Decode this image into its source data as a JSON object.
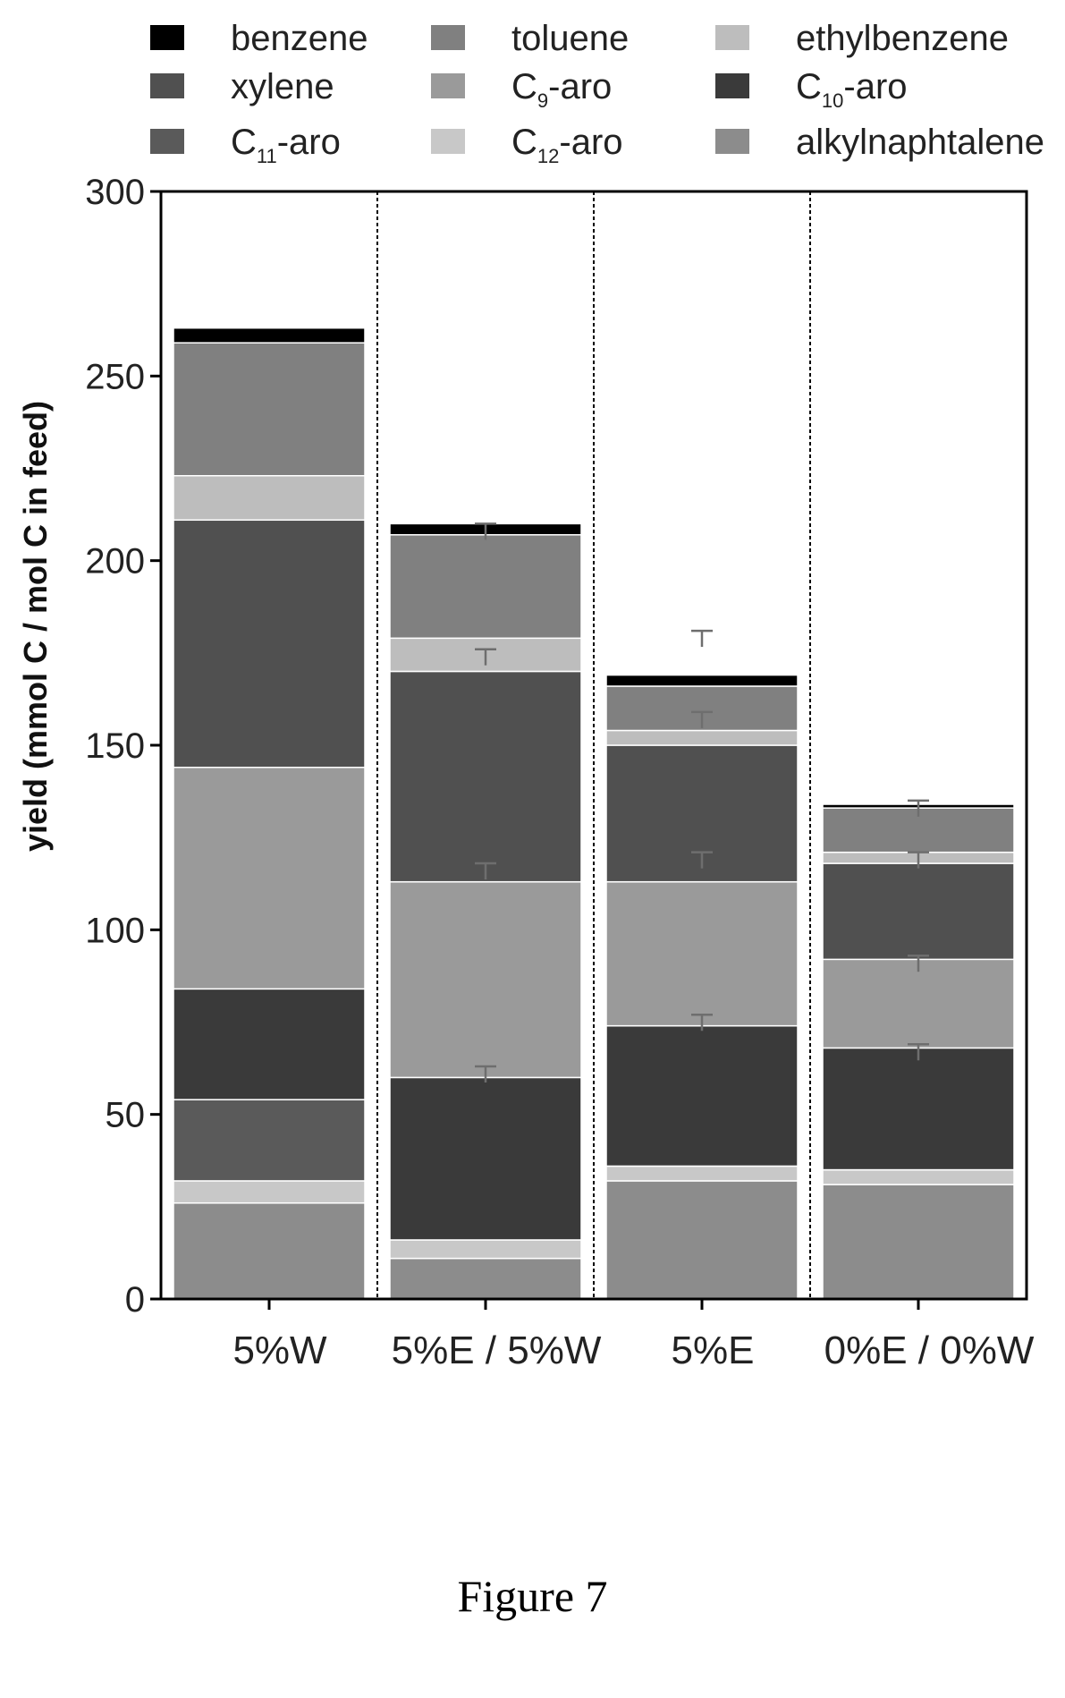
{
  "figure_caption": "Figure 7",
  "chart_data": {
    "type": "bar",
    "stacked": true,
    "ylabel": "yield (mmol C / mol C in feed)",
    "xlabel": "",
    "ylim": [
      0,
      300
    ],
    "yticks": [
      0,
      50,
      100,
      150,
      200,
      250,
      300
    ],
    "categories": [
      "5%W",
      "5%E / 5%W",
      "5%E",
      "0%E / 0%W"
    ],
    "legend": [
      {
        "prefix": "",
        "sub": "",
        "suffix": "benzene"
      },
      {
        "prefix": "",
        "sub": "",
        "suffix": "toluene"
      },
      {
        "prefix": "",
        "sub": "",
        "suffix": "ethylbenzene"
      },
      {
        "prefix": "",
        "sub": "",
        "suffix": "xylene"
      },
      {
        "prefix": "C",
        "sub": "9",
        "suffix": "-aro"
      },
      {
        "prefix": "C",
        "sub": "10",
        "suffix": "-aro"
      },
      {
        "prefix": "C",
        "sub": "11",
        "suffix": "-aro"
      },
      {
        "prefix": "C",
        "sub": "12",
        "suffix": "-aro"
      },
      {
        "prefix": "",
        "sub": "",
        "suffix": "alkylnaphtalene"
      }
    ],
    "legend_position": "top",
    "grid": false,
    "series": [
      {
        "color": "#000000",
        "values": [
          4,
          3,
          3,
          1
        ]
      },
      {
        "color": "#808080",
        "values": [
          36,
          28,
          12,
          12
        ]
      },
      {
        "color": "#bdbdbd",
        "values": [
          12,
          9,
          4,
          3
        ]
      },
      {
        "color": "#505050",
        "values": [
          67,
          57,
          37,
          26
        ]
      },
      {
        "color": "#9a9a9a",
        "values": [
          60,
          53,
          39,
          24
        ]
      },
      {
        "color": "#3a3a3a",
        "values": [
          30,
          44,
          38,
          33
        ]
      },
      {
        "color": "#5a5a5a",
        "values": [
          22,
          0,
          0,
          0
        ]
      },
      {
        "color": "#c8c8c8",
        "values": [
          6,
          5,
          4,
          4
        ]
      },
      {
        "color": "#8c8c8c",
        "values": [
          26,
          11,
          32,
          31
        ]
      }
    ],
    "error_bar_tops": [
      [
        null,
        210,
        181,
        135
      ],
      [
        null,
        176,
        159,
        121
      ],
      [
        null,
        118,
        121,
        93
      ],
      [
        null,
        63,
        77,
        69
      ]
    ]
  }
}
